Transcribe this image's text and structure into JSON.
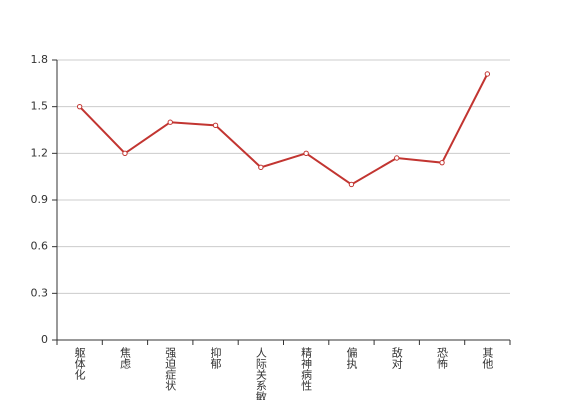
{
  "chart_data": {
    "type": "line",
    "categories": [
      "躯体化",
      "焦虑",
      "强迫症状",
      "抑郁",
      "人际关系敏感",
      "精神病性",
      "偏执",
      "敌对",
      "恐怖",
      "其他"
    ],
    "values": [
      1.5,
      1.2,
      1.4,
      1.38,
      1.11,
      1.2,
      1.0,
      1.17,
      1.14,
      1.71
    ],
    "color": "#c23531",
    "ylim": [
      0,
      1.8
    ],
    "yticks": [
      0,
      0.3,
      0.6,
      0.9,
      1.2,
      1.5,
      1.8
    ],
    "grid": true
  }
}
